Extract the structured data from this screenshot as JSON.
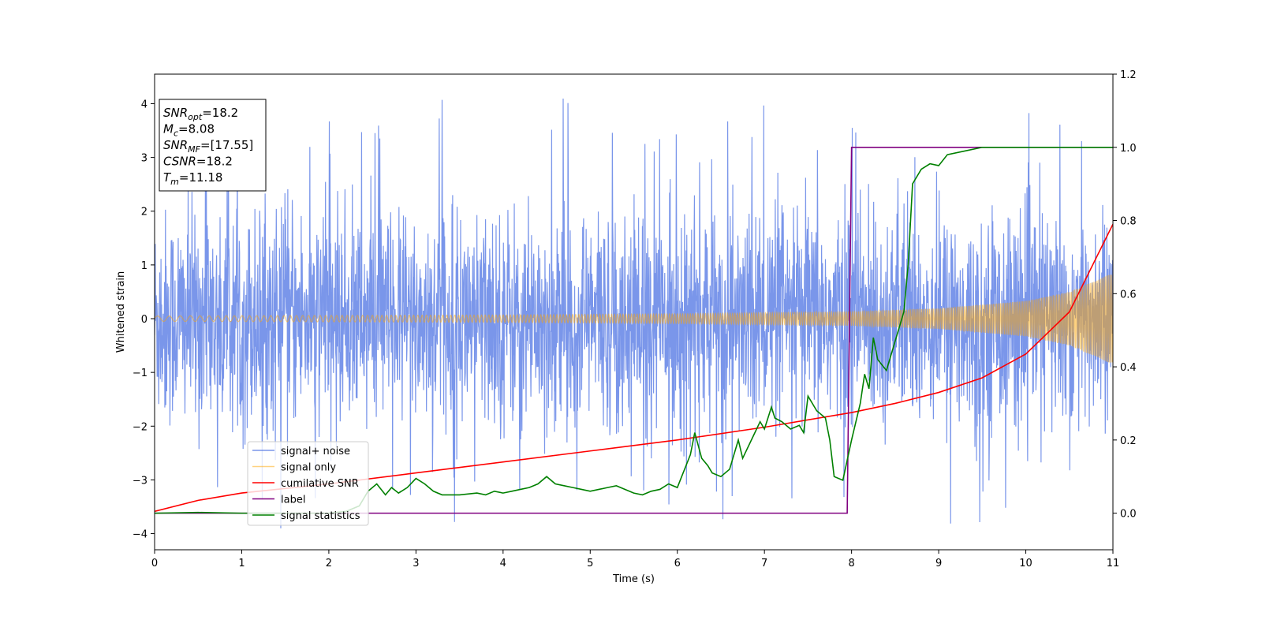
{
  "chart_data": {
    "type": "line",
    "xlabel": "Time (s)",
    "ylabel": "Whitened strain",
    "xlim": [
      0,
      11
    ],
    "ylim_left": [
      -4.3,
      4.55
    ],
    "ylim_right": [
      -0.1,
      1.2
    ],
    "x_ticks": [
      0,
      1,
      2,
      3,
      4,
      5,
      6,
      7,
      8,
      9,
      10,
      11
    ],
    "y_ticks_left": [
      -4,
      -3,
      -2,
      -1,
      0,
      1,
      2,
      3,
      4
    ],
    "y_ticks_right": [
      0.0,
      0.2,
      0.4,
      0.6,
      0.8,
      1.0,
      1.2
    ],
    "y_ticks_left_labels": [
      "−4",
      "−3",
      "−2",
      "−1",
      "0",
      "1",
      "2",
      "3",
      "4"
    ],
    "y_ticks_right_labels": [
      "0.0",
      "0.2",
      "0.4",
      "0.6",
      "0.8",
      "1.0",
      "1.2"
    ],
    "grid": false,
    "legend_position": "lower-left",
    "series": [
      {
        "name": "signal+ noise",
        "axis": "left",
        "color": "#4169e1",
        "description_shape": "dense noise roughly between -2.6 and 2.6 with spikes up to 4.2 and down to -3.9"
      },
      {
        "name": "signal only",
        "axis": "left",
        "color": "#ffa500",
        "amplitude_points": {
          "t": [
            0,
            2,
            4,
            6,
            8,
            9,
            10,
            10.5,
            11
          ],
          "a": [
            0.05,
            0.06,
            0.07,
            0.09,
            0.13,
            0.19,
            0.33,
            0.5,
            0.85
          ]
        }
      },
      {
        "name": "cumilative SNR",
        "axis": "right",
        "color": "#ff0000",
        "x": [
          0,
          0.5,
          1,
          2,
          3,
          4,
          5,
          6,
          7,
          8,
          8.5,
          9,
          9.5,
          10,
          10.5,
          11
        ],
        "y": [
          0.005,
          0.035,
          0.055,
          0.08,
          0.11,
          0.14,
          0.17,
          0.2,
          0.235,
          0.275,
          0.3,
          0.33,
          0.37,
          0.435,
          0.55,
          0.79
        ]
      },
      {
        "name": "label",
        "axis": "right",
        "color": "#800080",
        "x": [
          0,
          7.95,
          8.0,
          11
        ],
        "y": [
          0.0,
          0.0,
          1.0,
          1.0
        ]
      },
      {
        "name": "signal statistics",
        "axis": "right",
        "color": "#008000",
        "x": [
          0,
          0.5,
          1,
          1.5,
          2,
          2.2,
          2.35,
          2.45,
          2.55,
          2.65,
          2.72,
          2.8,
          2.9,
          3.0,
          3.1,
          3.2,
          3.3,
          3.5,
          3.7,
          3.8,
          3.9,
          4.0,
          4.1,
          4.2,
          4.3,
          4.4,
          4.5,
          4.6,
          4.7,
          4.8,
          4.9,
          5.0,
          5.1,
          5.2,
          5.3,
          5.4,
          5.5,
          5.6,
          5.7,
          5.8,
          5.9,
          6.0,
          6.05,
          6.15,
          6.2,
          6.28,
          6.35,
          6.4,
          6.5,
          6.6,
          6.7,
          6.75,
          6.85,
          6.95,
          7.0,
          7.08,
          7.12,
          7.2,
          7.3,
          7.4,
          7.45,
          7.5,
          7.6,
          7.7,
          7.75,
          7.8,
          7.9,
          8.0,
          8.1,
          8.15,
          8.2,
          8.25,
          8.3,
          8.4,
          8.5,
          8.6,
          8.65,
          8.7,
          8.8,
          8.9,
          9.0,
          9.1,
          9.3,
          9.5,
          10,
          10.5,
          11
        ],
        "y": [
          0.0,
          0.002,
          0.0,
          0.0,
          0.0,
          0.005,
          0.02,
          0.06,
          0.08,
          0.05,
          0.07,
          0.055,
          0.07,
          0.095,
          0.08,
          0.06,
          0.05,
          0.05,
          0.055,
          0.05,
          0.06,
          0.055,
          0.06,
          0.065,
          0.07,
          0.08,
          0.1,
          0.08,
          0.075,
          0.07,
          0.065,
          0.06,
          0.065,
          0.07,
          0.075,
          0.065,
          0.055,
          0.05,
          0.06,
          0.065,
          0.08,
          0.07,
          0.1,
          0.16,
          0.22,
          0.15,
          0.13,
          0.11,
          0.1,
          0.12,
          0.2,
          0.15,
          0.2,
          0.25,
          0.23,
          0.29,
          0.26,
          0.25,
          0.23,
          0.24,
          0.22,
          0.32,
          0.28,
          0.26,
          0.2,
          0.1,
          0.09,
          0.2,
          0.3,
          0.38,
          0.34,
          0.48,
          0.42,
          0.39,
          0.47,
          0.55,
          0.68,
          0.9,
          0.94,
          0.955,
          0.95,
          0.98,
          0.99,
          1.0,
          1.0,
          1.0,
          1.0
        ]
      }
    ]
  },
  "annotation": {
    "lines": [
      {
        "var": "SNR",
        "sub": "opt",
        "rest": "=18.2"
      },
      {
        "var": "M",
        "sub": "c",
        "rest": "=8.08"
      },
      {
        "var": "SNR",
        "sub": "MF",
        "rest": "=[17.55]"
      },
      {
        "var": "CSNR",
        "sub": "",
        "rest": "=18.2"
      },
      {
        "var": "T",
        "sub": "m",
        "rest": "=11.18"
      }
    ]
  }
}
